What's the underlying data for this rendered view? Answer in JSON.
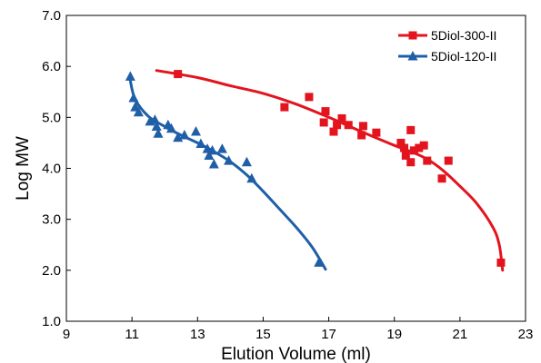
{
  "chart_data": {
    "type": "scatter",
    "title": "",
    "xlabel": "Elution Volume (ml)",
    "ylabel": "Log MW",
    "xlim": [
      9,
      23
    ],
    "ylim": [
      1.0,
      7.0
    ],
    "x_ticks": [
      9,
      11,
      13,
      15,
      17,
      19,
      21,
      23
    ],
    "x_tick_labels": [
      "9",
      "11",
      "13",
      "15",
      "17",
      "19",
      "21",
      "23"
    ],
    "y_ticks": [
      1,
      2,
      3,
      4,
      5,
      6,
      7
    ],
    "y_tick_labels": [
      "1.0",
      "2.0",
      "3.0",
      "4.0",
      "5.0",
      "6.0",
      "7.0"
    ],
    "grid": false,
    "legend_position": "top-right",
    "series": [
      {
        "name": "5Diol-300-II",
        "color": "#e3141e",
        "marker": "square",
        "points": [
          [
            12.4,
            5.85
          ],
          [
            15.65,
            5.2
          ],
          [
            16.4,
            5.4
          ],
          [
            16.85,
            4.9
          ],
          [
            16.9,
            5.12
          ],
          [
            17.15,
            4.72
          ],
          [
            17.25,
            4.85
          ],
          [
            17.4,
            4.98
          ],
          [
            17.6,
            4.85
          ],
          [
            18.0,
            4.65
          ],
          [
            18.05,
            4.83
          ],
          [
            18.45,
            4.7
          ],
          [
            19.2,
            4.5
          ],
          [
            19.3,
            4.4
          ],
          [
            19.35,
            4.25
          ],
          [
            19.5,
            4.75
          ],
          [
            19.5,
            4.12
          ],
          [
            19.6,
            4.35
          ],
          [
            19.75,
            4.4
          ],
          [
            19.9,
            4.45
          ],
          [
            20.0,
            4.15
          ],
          [
            20.45,
            3.8
          ],
          [
            20.65,
            4.15
          ],
          [
            22.25,
            2.15
          ]
        ],
        "fit_curve": [
          [
            11.75,
            5.92
          ],
          [
            13.0,
            5.78
          ],
          [
            14.0,
            5.62
          ],
          [
            15.0,
            5.47
          ],
          [
            16.0,
            5.26
          ],
          [
            17.0,
            5.0
          ],
          [
            18.0,
            4.72
          ],
          [
            19.0,
            4.45
          ],
          [
            19.5,
            4.33
          ],
          [
            20.0,
            4.18
          ],
          [
            20.5,
            3.95
          ],
          [
            21.0,
            3.65
          ],
          [
            21.5,
            3.32
          ],
          [
            22.0,
            2.85
          ],
          [
            22.2,
            2.5
          ],
          [
            22.3,
            2.0
          ]
        ]
      },
      {
        "name": "5Diol-120-II",
        "color": "#1f5fa8",
        "marker": "triangle",
        "points": [
          [
            10.95,
            5.8
          ],
          [
            11.05,
            5.38
          ],
          [
            11.1,
            5.2
          ],
          [
            11.2,
            5.1
          ],
          [
            11.55,
            4.92
          ],
          [
            11.7,
            4.95
          ],
          [
            11.75,
            4.82
          ],
          [
            11.8,
            4.68
          ],
          [
            12.1,
            4.85
          ],
          [
            12.2,
            4.78
          ],
          [
            12.4,
            4.6
          ],
          [
            12.6,
            4.65
          ],
          [
            12.95,
            4.72
          ],
          [
            13.1,
            4.48
          ],
          [
            13.3,
            4.38
          ],
          [
            13.35,
            4.25
          ],
          [
            13.45,
            4.35
          ],
          [
            13.5,
            4.08
          ],
          [
            13.75,
            4.38
          ],
          [
            13.95,
            4.15
          ],
          [
            14.5,
            4.12
          ],
          [
            14.65,
            3.8
          ],
          [
            16.7,
            2.15
          ]
        ],
        "fit_curve": [
          [
            10.95,
            5.72
          ],
          [
            11.1,
            5.35
          ],
          [
            11.5,
            5.02
          ],
          [
            12.0,
            4.82
          ],
          [
            12.5,
            4.65
          ],
          [
            13.0,
            4.5
          ],
          [
            13.5,
            4.33
          ],
          [
            14.0,
            4.13
          ],
          [
            14.5,
            3.87
          ],
          [
            15.0,
            3.55
          ],
          [
            15.5,
            3.2
          ],
          [
            16.0,
            2.85
          ],
          [
            16.5,
            2.45
          ],
          [
            16.9,
            2.02
          ]
        ]
      }
    ]
  }
}
